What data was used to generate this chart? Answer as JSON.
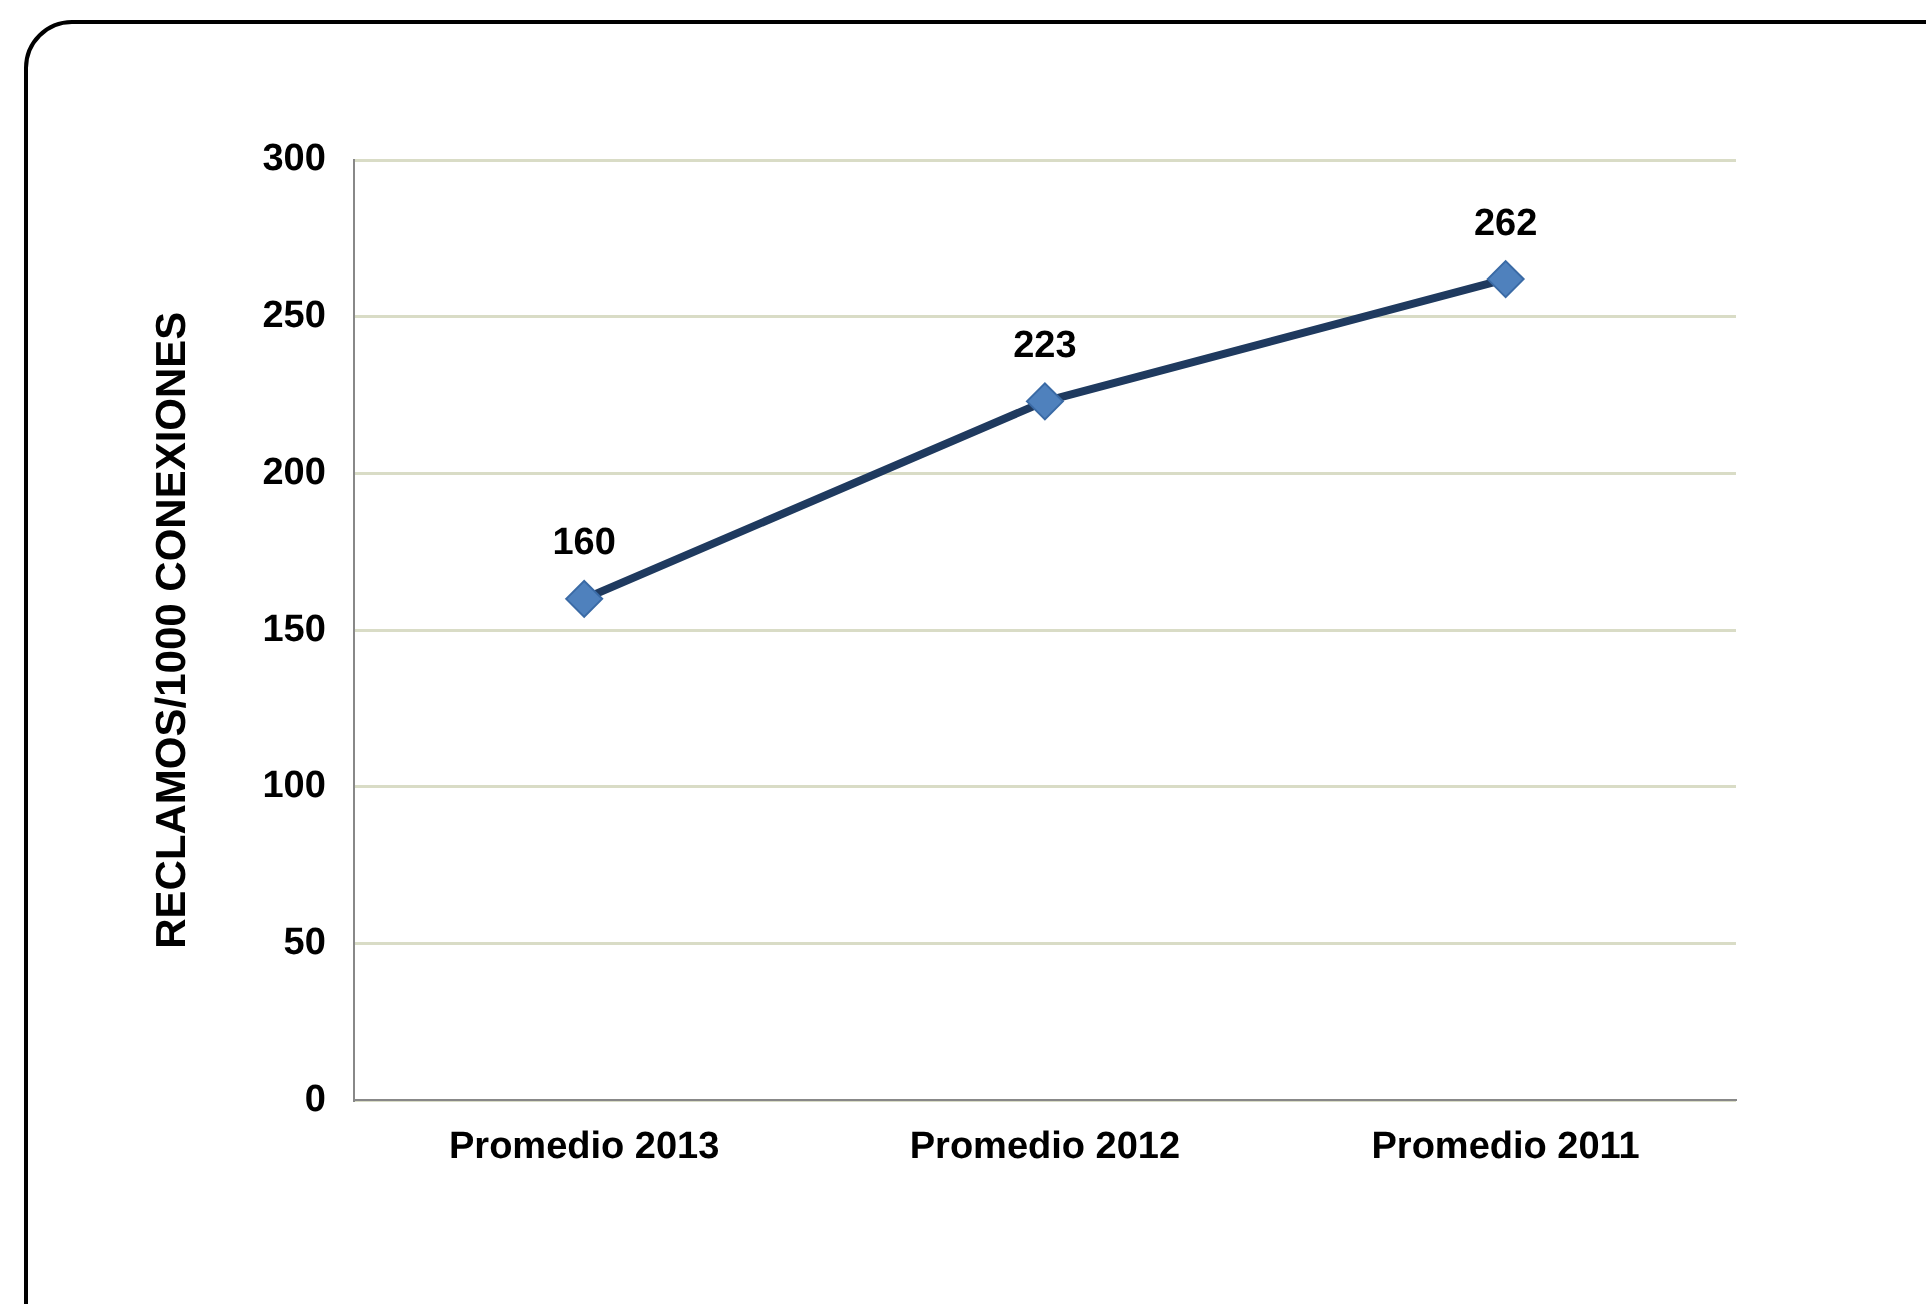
{
  "chart_data": {
    "type": "line",
    "ylabel": "RECLAMOS/1000 CONEXIONES",
    "categories": [
      "Promedio 2013",
      "Promedio 2012",
      "Promedio 2011"
    ],
    "series": [
      {
        "color": "#1f3a5f",
        "values": [
          160,
          223,
          262
        ]
      }
    ],
    "ylim": [
      0,
      300
    ],
    "yticks": [
      0,
      50,
      100,
      150,
      200,
      250,
      300
    ],
    "grid": "y",
    "legend": false,
    "marker": "diamond",
    "line_style": "solid",
    "data_labels": true
  }
}
